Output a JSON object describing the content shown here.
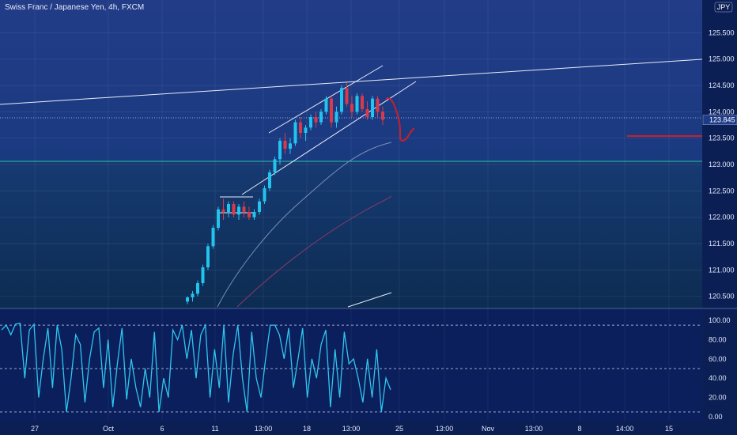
{
  "header": {
    "title": "Swiss Franc / Japanese Yen, 4h, FXCM",
    "currency_badge": "JPY"
  },
  "colors": {
    "bg_top": "#1f3a86",
    "bg_bottom": "#0c2a4a",
    "bull": "#22c3ee",
    "bear": "#d93a4a",
    "drawing_red": "#c8202a",
    "stoch": "#2fc6ee",
    "lines": "#e8ecf8"
  },
  "chart_data": [
    {
      "type": "candlestick",
      "symbol": "CHFJPY",
      "timeframe": "4h",
      "ylim": [
        120.3,
        126.0
      ],
      "yticks": [
        125.5,
        125.0,
        124.5,
        124.0,
        123.5,
        123.0,
        122.5,
        122.0,
        121.5,
        121.0,
        120.5
      ],
      "ytick_labels": [
        "125.500",
        "125.000",
        "124.500",
        "124.000",
        "123.500",
        "123.000",
        "122.500",
        "122.000",
        "121.500",
        "121.000",
        "120.500"
      ],
      "last_price": "123.845",
      "x_labels": [
        "27",
        "Oct",
        "6",
        "11",
        "13:00",
        "18",
        "13:00",
        "25",
        "13:00",
        "Nov",
        "13:00",
        "8",
        "14:00",
        "15"
      ],
      "candles": [
        [
          120.4,
          120.5,
          120.35,
          120.48
        ],
        [
          120.48,
          120.6,
          120.4,
          120.55
        ],
        [
          120.55,
          120.8,
          120.5,
          120.75
        ],
        [
          120.75,
          121.1,
          120.7,
          121.05
        ],
        [
          121.05,
          121.5,
          121.0,
          121.45
        ],
        [
          121.45,
          121.85,
          121.4,
          121.8
        ],
        [
          121.8,
          122.2,
          121.75,
          122.15
        ],
        [
          122.15,
          122.35,
          121.95,
          122.1
        ],
        [
          122.1,
          122.3,
          122.0,
          122.25
        ],
        [
          122.25,
          122.3,
          122.0,
          122.05
        ],
        [
          122.05,
          122.25,
          121.95,
          122.2
        ],
        [
          122.2,
          122.3,
          122.0,
          122.1
        ],
        [
          122.1,
          122.2,
          121.95,
          122.0
        ],
        [
          122.0,
          122.15,
          121.95,
          122.1
        ],
        [
          122.1,
          122.35,
          122.05,
          122.3
        ],
        [
          122.3,
          122.6,
          122.25,
          122.55
        ],
        [
          122.55,
          122.9,
          122.5,
          122.85
        ],
        [
          122.85,
          123.15,
          122.8,
          123.1
        ],
        [
          123.1,
          123.5,
          123.0,
          123.45
        ],
        [
          123.45,
          123.6,
          123.2,
          123.3
        ],
        [
          123.3,
          123.5,
          123.2,
          123.4
        ],
        [
          123.4,
          123.85,
          123.35,
          123.8
        ],
        [
          123.8,
          123.9,
          123.5,
          123.6
        ],
        [
          123.6,
          123.75,
          123.45,
          123.7
        ],
        [
          123.7,
          123.95,
          123.65,
          123.9
        ],
        [
          123.9,
          124.0,
          123.7,
          123.8
        ],
        [
          123.8,
          124.05,
          123.75,
          124.0
        ],
        [
          124.0,
          124.3,
          123.95,
          124.25
        ],
        [
          124.25,
          124.3,
          123.7,
          123.8
        ],
        [
          123.8,
          124.1,
          123.7,
          124.0
        ],
        [
          124.0,
          124.5,
          123.95,
          124.45
        ],
        [
          124.45,
          124.55,
          124.1,
          124.15
        ],
        [
          124.15,
          124.3,
          123.9,
          124.0
        ],
        [
          124.0,
          124.35,
          123.95,
          124.3
        ],
        [
          124.3,
          124.35,
          124.0,
          124.05
        ],
        [
          124.05,
          124.2,
          123.85,
          123.9
        ],
        [
          123.9,
          124.3,
          123.85,
          124.25
        ],
        [
          124.25,
          124.3,
          123.9,
          124.0
        ],
        [
          124.0,
          124.1,
          123.75,
          123.85
        ]
      ]
    },
    {
      "type": "line",
      "name": "Stochastic",
      "ylim": [
        0,
        100
      ],
      "yticks": [
        100,
        80,
        60,
        40,
        20,
        0
      ],
      "ytick_labels": [
        "100.00",
        "80.00",
        "60.00",
        "40.00",
        "20.00",
        "0.00"
      ],
      "levels": [
        95,
        50,
        5
      ],
      "values": [
        90,
        95,
        85,
        96,
        97,
        40,
        90,
        96,
        20,
        60,
        92,
        30,
        95,
        70,
        5,
        40,
        85,
        75,
        15,
        60,
        88,
        92,
        30,
        80,
        10,
        55,
        92,
        18,
        60,
        30,
        10,
        50,
        20,
        88,
        5,
        40,
        20,
        90,
        80,
        95,
        60,
        90,
        40,
        85,
        95,
        20,
        70,
        30,
        95,
        15,
        65,
        95,
        40,
        5,
        88,
        40,
        20,
        60,
        95,
        95,
        85,
        60,
        92,
        30,
        60,
        92,
        20,
        60,
        40,
        75,
        90,
        10,
        70,
        20,
        88,
        55,
        60,
        40,
        15,
        60,
        20,
        70,
        5,
        40,
        28
      ]
    }
  ]
}
